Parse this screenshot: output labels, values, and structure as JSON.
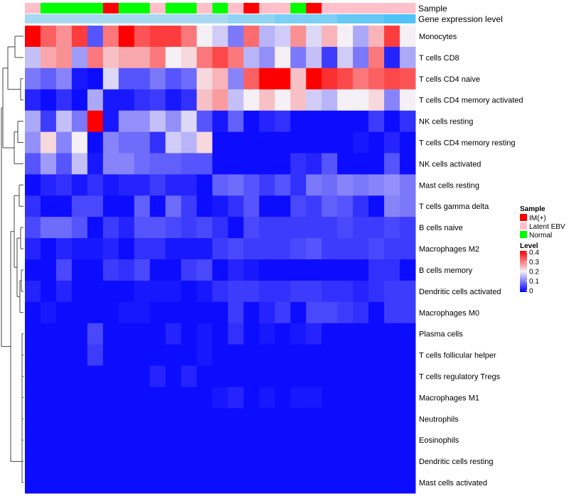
{
  "chart_data": {
    "type": "heatmap",
    "annotation_labels": [
      "Sample",
      "Gene expression level"
    ],
    "sample_annotation": [
      "Latent EBV",
      "Normal",
      "Normal",
      "Normal",
      "Normal",
      "IM(+)",
      "Normal",
      "Normal",
      "Latent EBV",
      "Normal",
      "Normal",
      "Latent EBV",
      "Normal",
      "Latent EBV",
      "IM(+)",
      "Latent EBV",
      "Latent EBV",
      "Normal",
      "IM(+)",
      "Latent EBV",
      "Latent EBV",
      "Latent EBV",
      "Latent EBV",
      "Latent EBV",
      "Latent EBV"
    ],
    "expression_annotation": [
      0.8,
      0.8,
      0.8,
      0.8,
      0.8,
      0.8,
      0.8,
      0.8,
      0.8,
      0.8,
      0.8,
      0.8,
      0.8,
      0.85,
      0.85,
      0.85,
      0.9,
      0.9,
      0.9,
      0.9,
      0.95,
      0.95,
      0.95,
      1.0,
      1.0
    ],
    "rows": [
      "Monocytes",
      "T cells CD8",
      "T cells CD4 naive",
      "T cells CD4 memory activated",
      "NK cells resting",
      "T cells CD4 memory resting",
      "NK cells activated",
      "Mast cells resting",
      "T cells gamma delta",
      "B cells naive",
      "Macrophages M2",
      "B cells memory",
      "Dendritic cells activated",
      "Macrophages M0",
      "Plasma cells",
      "T cells follicular helper",
      "T cells regulatory  Tregs",
      "Macrophages M1",
      "Neutrophils",
      "Eosinophils",
      "Dendritic cells resting",
      "Mast cells activated"
    ],
    "values": [
      [
        0.4,
        0.32,
        0.28,
        0.35,
        0.07,
        0.3,
        0.4,
        0.33,
        0.35,
        0.35,
        0.3,
        0.2,
        0.17,
        0.1,
        0.31,
        0.15,
        0.17,
        0.28,
        0.18,
        0.25,
        0.2,
        0.14,
        0.25,
        0.35,
        0.2
      ],
      [
        0.16,
        0.26,
        0.28,
        0.13,
        0.3,
        0.24,
        0.26,
        0.26,
        0.3,
        0.2,
        0.22,
        0.3,
        0.34,
        0.3,
        0.15,
        0.12,
        0.2,
        0.1,
        0.16,
        0.05,
        0.17,
        0.1,
        0.3,
        0.03,
        0.14
      ],
      [
        0.1,
        0.08,
        0.11,
        0.02,
        0.01,
        0.18,
        0.07,
        0.07,
        0.1,
        0.07,
        0.09,
        0.22,
        0.25,
        0.11,
        0.32,
        0.4,
        0.4,
        0.24,
        0.4,
        0.36,
        0.34,
        0.3,
        0.32,
        0.34,
        0.33
      ],
      [
        0.03,
        0.01,
        0.04,
        0.01,
        0.14,
        0.02,
        0.02,
        0.04,
        0.05,
        0.02,
        0.04,
        0.24,
        0.27,
        0.16,
        0.2,
        0.24,
        0.2,
        0.24,
        0.17,
        0.15,
        0.2,
        0.2,
        0.22,
        0.11,
        0.2
      ],
      [
        0.14,
        0.05,
        0.16,
        0.1,
        0.4,
        0.02,
        0.12,
        0.12,
        0.16,
        0.12,
        0.18,
        0.07,
        0.02,
        0.08,
        0.01,
        0.03,
        0.04,
        0.01,
        0.01,
        0.01,
        0.01,
        0.01,
        0.05,
        0.01,
        0.04
      ],
      [
        0.12,
        0.22,
        0.11,
        0.2,
        0.01,
        0.11,
        0.09,
        0.09,
        0.04,
        0.17,
        0.15,
        0.22,
        0.01,
        0.01,
        0.01,
        0.01,
        0.01,
        0.01,
        0.01,
        0.01,
        0.01,
        0.02,
        0.01,
        0.03,
        0.01
      ],
      [
        0.07,
        0.13,
        0.07,
        0.16,
        0.02,
        0.11,
        0.11,
        0.09,
        0.08,
        0.08,
        0.07,
        0.07,
        0.01,
        0.01,
        0.01,
        0.01,
        0.01,
        0.04,
        0.03,
        0.07,
        0.01,
        0.01,
        0.01,
        0.07,
        0.01
      ],
      [
        0.01,
        0.03,
        0.04,
        0.02,
        0.04,
        0.02,
        0.03,
        0.03,
        0.05,
        0.03,
        0.03,
        0.01,
        0.08,
        0.09,
        0.07,
        0.05,
        0.07,
        0.04,
        0.1,
        0.09,
        0.11,
        0.1,
        0.11,
        0.12,
        0.1
      ],
      [
        0.04,
        0.01,
        0.01,
        0.06,
        0.06,
        0.01,
        0.01,
        0.08,
        0.01,
        0.09,
        0.05,
        0.01,
        0.02,
        0.04,
        0.07,
        0.01,
        0.01,
        0.06,
        0.05,
        0.08,
        0.07,
        0.04,
        0.01,
        0.11,
        0.1
      ],
      [
        0.06,
        0.09,
        0.09,
        0.07,
        0.01,
        0.05,
        0.03,
        0.07,
        0.07,
        0.06,
        0.05,
        0.06,
        0.04,
        0.01,
        0.06,
        0.05,
        0.05,
        0.05,
        0.05,
        0.05,
        0.06,
        0.05,
        0.05,
        0.06,
        0.05
      ],
      [
        0.03,
        0.01,
        0.03,
        0.02,
        0.02,
        0.03,
        0.01,
        0.04,
        0.04,
        0.02,
        0.02,
        0.02,
        0.05,
        0.06,
        0.05,
        0.05,
        0.05,
        0.06,
        0.07,
        0.05,
        0.05,
        0.05,
        0.06,
        0.05,
        0.05
      ],
      [
        0.01,
        0.01,
        0.06,
        0.01,
        0.01,
        0.05,
        0.04,
        0.06,
        0.01,
        0.01,
        0.05,
        0.06,
        0.01,
        0.03,
        0.02,
        0.01,
        0.01,
        0.01,
        0.01,
        0.01,
        0.01,
        0.01,
        0.04,
        0.04,
        0.01
      ],
      [
        0.03,
        0.01,
        0.03,
        0.01,
        0.01,
        0.01,
        0.01,
        0.02,
        0.02,
        0.02,
        0.01,
        0.02,
        0.04,
        0.05,
        0.05,
        0.04,
        0.04,
        0.05,
        0.05,
        0.04,
        0.04,
        0.03,
        0.04,
        0.05,
        0.05
      ],
      [
        0.01,
        0.02,
        0.01,
        0.01,
        0.01,
        0.01,
        0.02,
        0.02,
        0.01,
        0.01,
        0.01,
        0.01,
        0.01,
        0.05,
        0.01,
        0.03,
        0.05,
        0.01,
        0.06,
        0.06,
        0.05,
        0.04,
        0.01,
        0.05,
        0.05
      ],
      [
        0.01,
        0.01,
        0.01,
        0.01,
        0.06,
        0.01,
        0.01,
        0.01,
        0.01,
        0.03,
        0.01,
        0.02,
        0.01,
        0.04,
        0.01,
        0.02,
        0.01,
        0.02,
        0.03,
        0.01,
        0.01,
        0.01,
        0.01,
        0.01,
        0.01
      ],
      [
        0.01,
        0.01,
        0.01,
        0.01,
        0.05,
        0.01,
        0.01,
        0.01,
        0.01,
        0.01,
        0.01,
        0.02,
        0.01,
        0.01,
        0.01,
        0.01,
        0.01,
        0.01,
        0.01,
        0.01,
        0.01,
        0.01,
        0.01,
        0.01,
        0.01
      ],
      [
        0.01,
        0.01,
        0.01,
        0.01,
        0.01,
        0.01,
        0.01,
        0.01,
        0.03,
        0.01,
        0.03,
        0.01,
        0.01,
        0.01,
        0.01,
        0.01,
        0.01,
        0.01,
        0.01,
        0.01,
        0.01,
        0.01,
        0.01,
        0.01,
        0.01
      ],
      [
        0.01,
        0.01,
        0.01,
        0.01,
        0.01,
        0.01,
        0.01,
        0.01,
        0.01,
        0.01,
        0.01,
        0.01,
        0.02,
        0.03,
        0.01,
        0.02,
        0.01,
        0.02,
        0.02,
        0.01,
        0.01,
        0.01,
        0.01,
        0.01,
        0.01
      ],
      [
        0.01,
        0.01,
        0.01,
        0.01,
        0.01,
        0.01,
        0.01,
        0.01,
        0.01,
        0.01,
        0.01,
        0.01,
        0.01,
        0.01,
        0.01,
        0.01,
        0.01,
        0.01,
        0.01,
        0.01,
        0.01,
        0.01,
        0.01,
        0.01,
        0.01
      ],
      [
        0.01,
        0.01,
        0.01,
        0.01,
        0.01,
        0.01,
        0.01,
        0.01,
        0.01,
        0.01,
        0.01,
        0.01,
        0.01,
        0.01,
        0.01,
        0.01,
        0.01,
        0.01,
        0.01,
        0.01,
        0.01,
        0.01,
        0.01,
        0.01,
        0.01
      ],
      [
        0.01,
        0.01,
        0.01,
        0.01,
        0.01,
        0.01,
        0.01,
        0.01,
        0.01,
        0.01,
        0.01,
        0.01,
        0.01,
        0.01,
        0.01,
        0.01,
        0.01,
        0.01,
        0.01,
        0.01,
        0.01,
        0.01,
        0.01,
        0.01,
        0.01
      ],
      [
        0.01,
        0.01,
        0.01,
        0.01,
        0.01,
        0.01,
        0.01,
        0.01,
        0.01,
        0.01,
        0.01,
        0.01,
        0.01,
        0.01,
        0.01,
        0.01,
        0.01,
        0.01,
        0.01,
        0.01,
        0.01,
        0.01,
        0.01,
        0.01,
        0.01
      ]
    ],
    "value_range": [
      0,
      0.4
    ],
    "color_scale": {
      "low": "#0000FF",
      "mid": "#F5F0F5",
      "high": "#FF0000",
      "mid_value": 0.2
    },
    "legend_sample": {
      "title": "Sample",
      "entries": [
        {
          "label": "IM(+)",
          "color": "#FF0000"
        },
        {
          "label": "Latent EBV",
          "color": "#FFC0CB"
        },
        {
          "label": "Normal",
          "color": "#00FF00"
        }
      ]
    },
    "legend_level": {
      "title": "Level",
      "ticks": [
        "0.4",
        "0.3",
        "0.2",
        "0.1",
        "0"
      ]
    },
    "expression_colors": {
      "low": "#A6D8F0",
      "high": "#4FC3F7"
    },
    "legend_position": "right",
    "dendrogram": "rows"
  }
}
